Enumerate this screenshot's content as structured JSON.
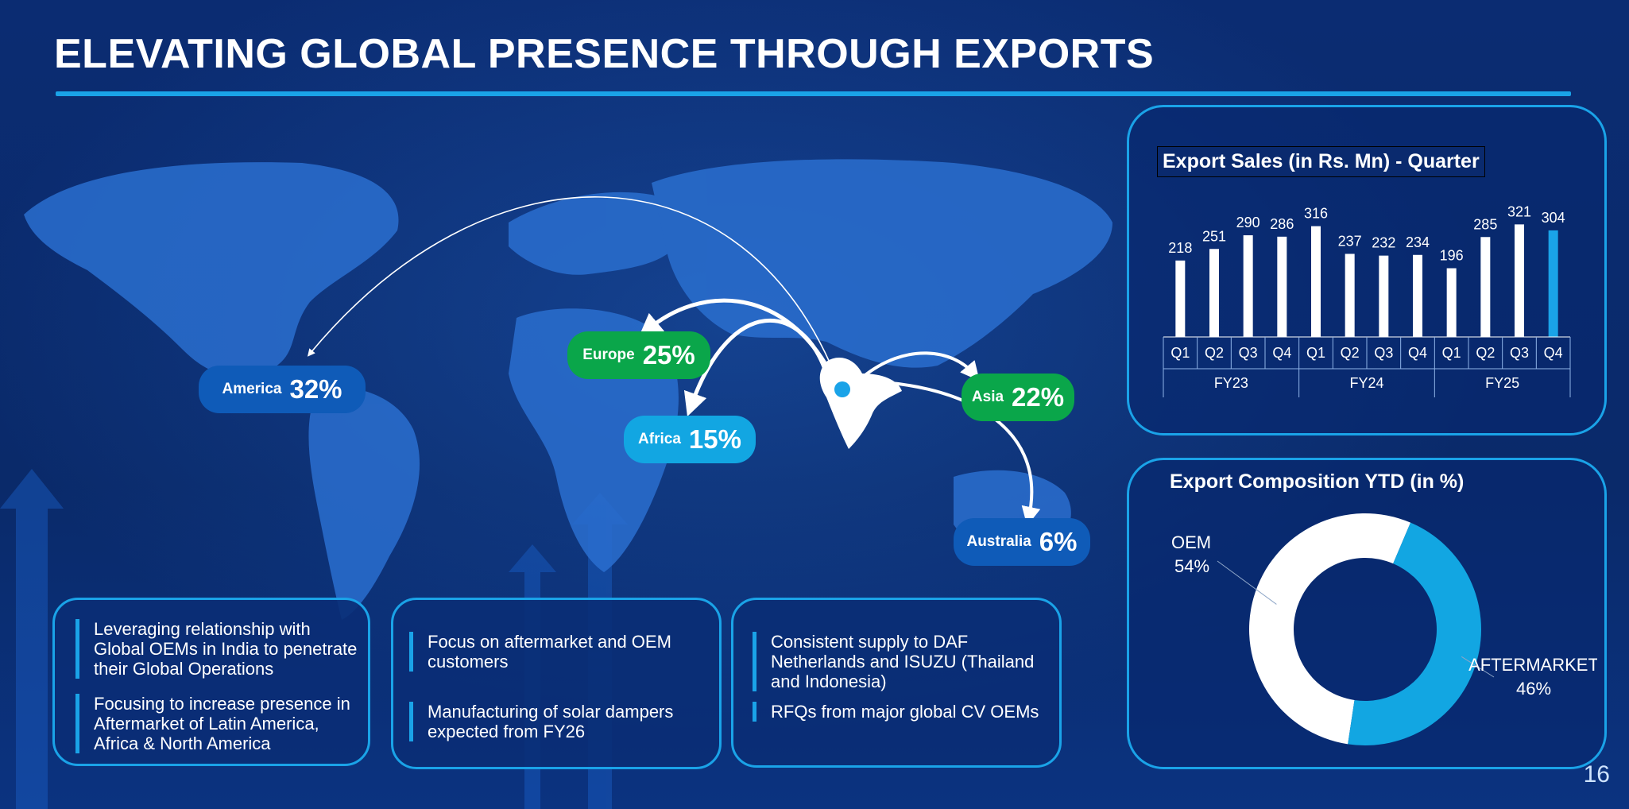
{
  "slide": {
    "title": "ELEVATING GLOBAL PRESENCE THROUGH EXPORTS",
    "page_number": "16"
  },
  "regions": [
    {
      "name": "America",
      "percent": "32%",
      "color": "#0f5bb8"
    },
    {
      "name": "Europe",
      "percent": "25%",
      "color": "#0aa64a"
    },
    {
      "name": "Africa",
      "percent": "15%",
      "color": "#12a6e2"
    },
    {
      "name": "Asia",
      "percent": "22%",
      "color": "#0aa64a"
    },
    {
      "name": "Australia",
      "percent": "6%",
      "color": "#0f5bb8"
    }
  ],
  "boxes": [
    {
      "bullets": [
        "Leveraging relationship with Global OEMs in India to penetrate their Global Operations",
        "Focusing to increase presence in Aftermarket of Latin America, Africa & North America"
      ]
    },
    {
      "bullets": [
        "Focus on aftermarket and OEM customers",
        "Manufacturing of solar dampers expected from FY26"
      ]
    },
    {
      "bullets": [
        "Consistent supply to DAF Netherlands and ISUZU (Thailand and Indonesia)",
        "RFQs from major global CV OEMs"
      ]
    }
  ],
  "chart_data": [
    {
      "type": "bar",
      "title": "Export Sales (in Rs. Mn) - Quarter",
      "categories": [
        "Q1",
        "Q2",
        "Q3",
        "Q4",
        "Q1",
        "Q2",
        "Q3",
        "Q4",
        "Q1",
        "Q2",
        "Q3",
        "Q4"
      ],
      "groups": [
        {
          "label": "FY23",
          "count": 4
        },
        {
          "label": "FY24",
          "count": 4
        },
        {
          "label": "FY25",
          "count": 4
        }
      ],
      "values": [
        218,
        251,
        290,
        286,
        316,
        237,
        232,
        234,
        196,
        285,
        321,
        304
      ],
      "highlight_index": 11,
      "bar_color": "#ffffff",
      "highlight_color": "#1aa3e8",
      "ylim": [
        0,
        340
      ],
      "grid": false
    },
    {
      "type": "pie",
      "title": "Export Composition YTD (in %)",
      "labels": [
        "OEM",
        "AFTERMARKET"
      ],
      "values": [
        54,
        46
      ],
      "value_labels": [
        "54%",
        "46%"
      ],
      "colors": [
        "#ffffff",
        "#12a6e2"
      ],
      "donut": true
    }
  ]
}
